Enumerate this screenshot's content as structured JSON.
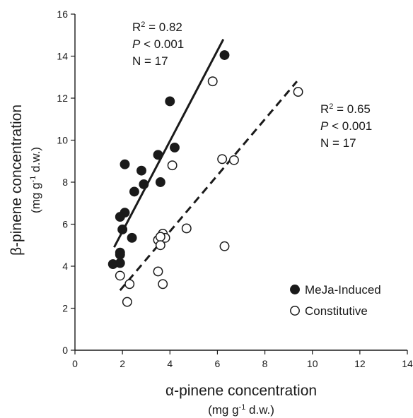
{
  "chart_data": {
    "type": "scatter",
    "xlabel": "α-pinene concentration",
    "xlabel_unit": [
      "(mg g",
      "-1",
      " d.w.)"
    ],
    "ylabel": "β-pinene concentration",
    "ylabel_unit": [
      "(mg g",
      "-1",
      " d.w.)"
    ],
    "xlim": [
      0,
      14
    ],
    "ylim": [
      0,
      16
    ],
    "xticks": [
      0,
      2,
      4,
      6,
      8,
      10,
      12,
      14
    ],
    "yticks": [
      0,
      2,
      4,
      6,
      8,
      10,
      12,
      14,
      16
    ],
    "grid": false,
    "legend_position": "bottom-right",
    "series": [
      {
        "name": "MeJa-Induced",
        "marker": "filled-circle",
        "color": "#1a1a1a",
        "x": [
          6.3,
          4.0,
          4.2,
          3.5,
          2.1,
          2.8,
          2.9,
          2.5,
          3.6,
          2.1,
          1.9,
          2.0,
          2.4,
          1.9,
          1.9,
          1.6,
          1.9
        ],
        "y": [
          14.05,
          11.85,
          9.65,
          9.3,
          8.85,
          8.55,
          7.9,
          7.55,
          8.0,
          6.55,
          6.35,
          5.75,
          5.35,
          4.65,
          4.55,
          4.1,
          4.15
        ],
        "trendline": {
          "style": "solid",
          "x": [
            1.65,
            6.25
          ],
          "y": [
            4.9,
            14.8
          ]
        },
        "stats": {
          "r2_prefix": "R",
          "r2_sup": "2",
          "r2_value": " = 0.82",
          "p_var": "P",
          "p_value": " < 0.001",
          "n": "N = 17"
        }
      },
      {
        "name": "Constitutive",
        "marker": "open-circle",
        "color": "#1a1a1a",
        "x": [
          9.4,
          5.8,
          6.2,
          6.7,
          4.1,
          4.7,
          3.7,
          3.8,
          3.5,
          3.6,
          3.6,
          6.3,
          3.5,
          1.9,
          2.3,
          3.7,
          2.2
        ],
        "y": [
          12.3,
          12.8,
          9.1,
          9.05,
          8.8,
          5.8,
          5.55,
          5.35,
          5.25,
          5.4,
          5.0,
          4.95,
          3.75,
          3.55,
          3.15,
          3.15,
          2.3
        ],
        "trendline": {
          "style": "dashed",
          "x": [
            1.9,
            9.35
          ],
          "y": [
            2.85,
            12.8
          ]
        },
        "stats": {
          "r2_prefix": "R",
          "r2_sup": "2",
          "r2_value": " = 0.65",
          "p_var": "P",
          "p_value": " < 0.001",
          "n": "N = 17"
        }
      }
    ]
  }
}
